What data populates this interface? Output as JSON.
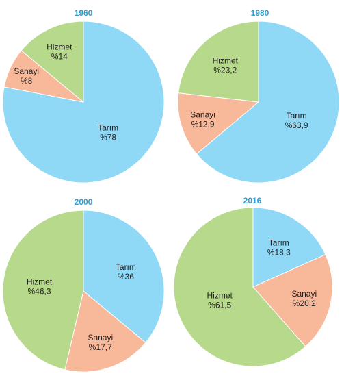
{
  "colors": {
    "Tarım": "#8fd8f6",
    "Sanayi": "#f7b99a",
    "Hizmet": "#b6d98c",
    "year_text": "#2a9fd0",
    "label_text": "#231f20"
  },
  "chart_data": [
    {
      "type": "pie",
      "title": "1960",
      "slices": [
        {
          "name": "Tarım",
          "value": 78,
          "label": "%78"
        },
        {
          "name": "Sanayi",
          "value": 8,
          "label": "%8"
        },
        {
          "name": "Hizmet",
          "value": 14,
          "label": "%14"
        }
      ]
    },
    {
      "type": "pie",
      "title": "1980",
      "slices": [
        {
          "name": "Tarım",
          "value": 63.9,
          "label": "%63,9"
        },
        {
          "name": "Sanayi",
          "value": 12.9,
          "label": "%12,9"
        },
        {
          "name": "Hizmet",
          "value": 23.2,
          "label": "%23,2"
        }
      ]
    },
    {
      "type": "pie",
      "title": "2000",
      "slices": [
        {
          "name": "Tarım",
          "value": 36,
          "label": "%36"
        },
        {
          "name": "Sanayi",
          "value": 17.7,
          "label": "%17,7"
        },
        {
          "name": "Hizmet",
          "value": 46.3,
          "label": "%46,3"
        }
      ]
    },
    {
      "type": "pie",
      "title": "2016",
      "slices": [
        {
          "name": "Tarım",
          "value": 18.3,
          "label": "%18,3"
        },
        {
          "name": "Sanayi",
          "value": 20.2,
          "label": "%20,2"
        },
        {
          "name": "Hizmet",
          "value": 61.5,
          "label": "%61,5"
        }
      ]
    }
  ]
}
